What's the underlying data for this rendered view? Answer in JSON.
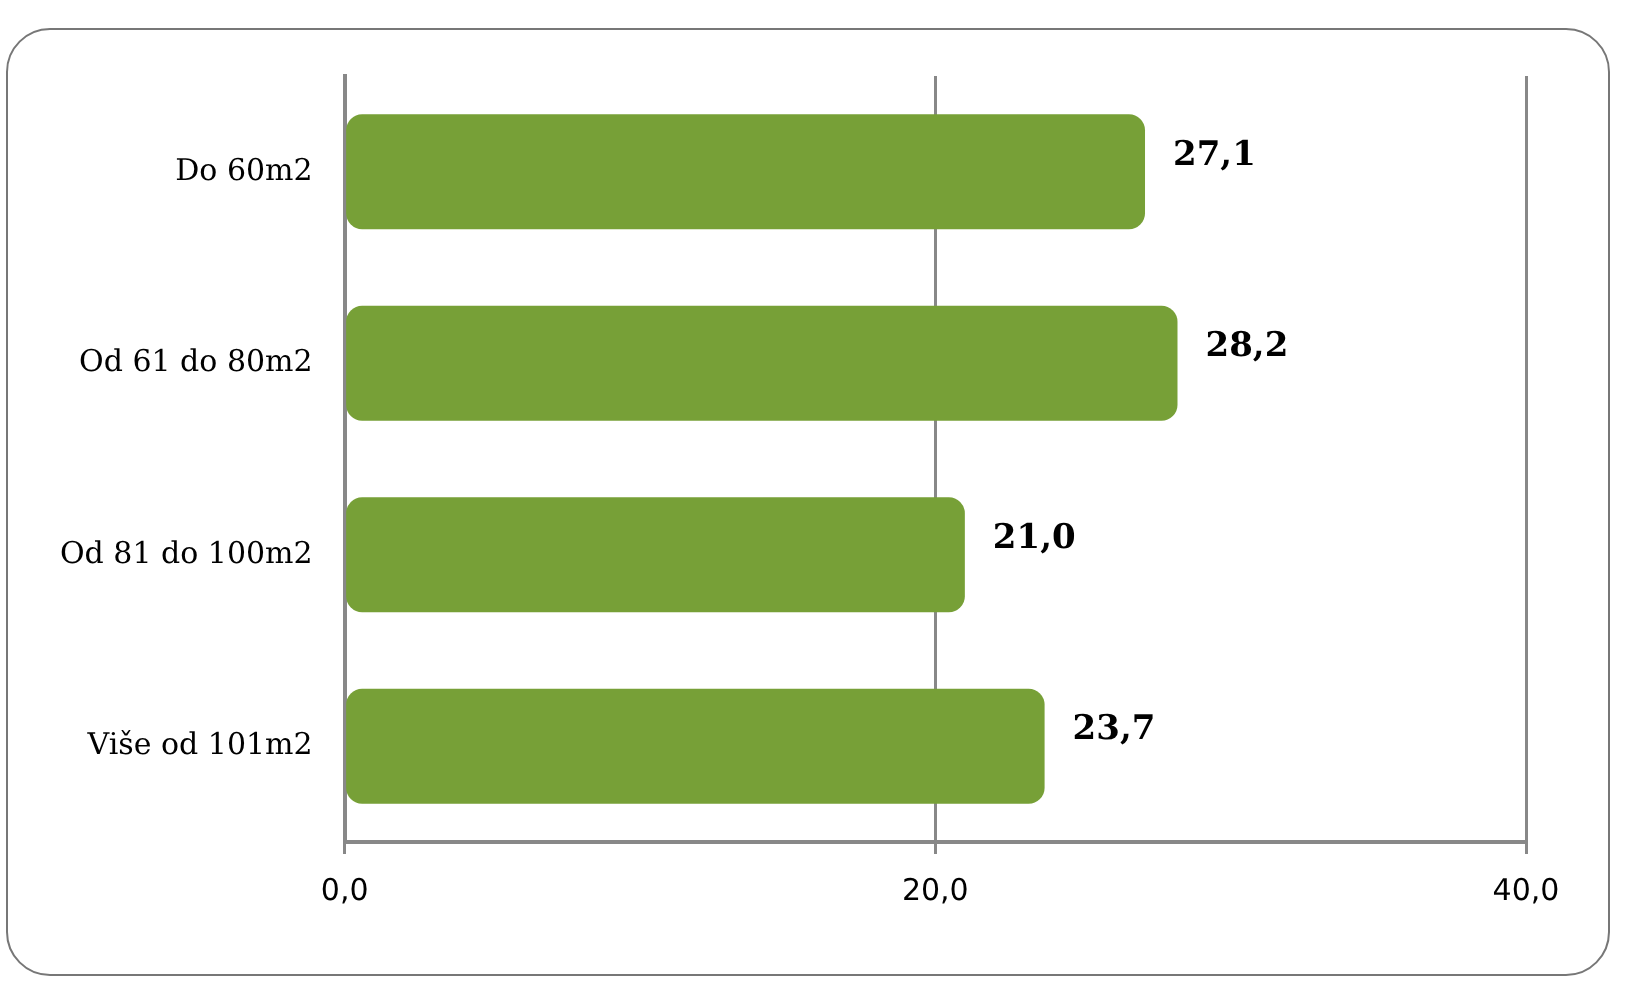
{
  "chart_data": {
    "type": "bar",
    "orientation": "horizontal",
    "categories": [
      "Do 60m2",
      "Od 61 do 80m2",
      "Od 81 do 100m2",
      "Više od 101m2"
    ],
    "values": [
      27.1,
      28.2,
      21.0,
      23.7
    ],
    "value_labels": [
      "27,1",
      "28,2",
      "21,0",
      "23,7"
    ],
    "color": "#77a037",
    "xlim": [
      0,
      40
    ],
    "xticks": [
      {
        "value": 0,
        "label": "0,0"
      },
      {
        "value": 20,
        "label": "20,0"
      },
      {
        "value": 40,
        "label": "40,0"
      }
    ],
    "grid": "x",
    "legend": false
  }
}
